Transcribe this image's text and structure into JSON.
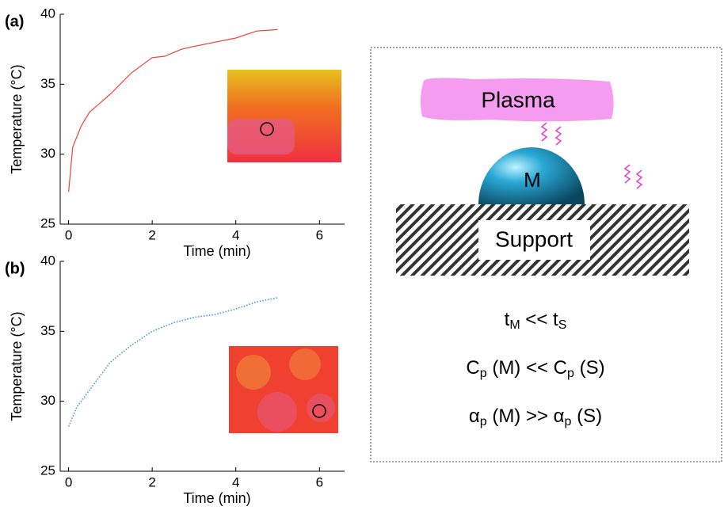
{
  "chart_data": [
    {
      "type": "line",
      "panel_label": "(a)",
      "y_label": "Temperature (°C)",
      "x_label": "Time (min)",
      "xlim": [
        -0.2,
        6.6
      ],
      "xticks": [
        0,
        2,
        4,
        6
      ],
      "ylim": [
        25,
        40
      ],
      "yticks": [
        25,
        30,
        35,
        40
      ],
      "series": [
        {
          "color": "#f0403a",
          "line_style": "solid",
          "x": [
            0,
            0.1,
            0.3,
            0.5,
            1,
            1.5,
            2,
            2.3,
            2.7,
            3,
            3.5,
            4,
            4.5,
            5
          ],
          "values": [
            27.3,
            30.5,
            32,
            33,
            34.3,
            35.8,
            36.9,
            37,
            37.5,
            37.7,
            38,
            38.3,
            38.8,
            38.9
          ]
        }
      ]
    },
    {
      "type": "line",
      "panel_label": "(b)",
      "y_label": "Temperature (°C)",
      "x_label": "Time (min)",
      "xlim": [
        -0.2,
        6.6
      ],
      "xticks": [
        0,
        2,
        4,
        6
      ],
      "ylim": [
        25,
        40
      ],
      "yticks": [
        25,
        30,
        35,
        40
      ],
      "series": [
        {
          "color": "#4a90e2",
          "line_style": "dotted",
          "x": [
            0,
            0.2,
            0.5,
            1,
            1.5,
            2,
            2.5,
            3,
            3.5,
            4,
            4.5,
            5
          ],
          "values": [
            28.2,
            29.6,
            30.8,
            32.8,
            34,
            35,
            35.6,
            36,
            36.2,
            36.6,
            37.1,
            37.4
          ]
        }
      ]
    }
  ],
  "diagram": {
    "plasma": "Plasma",
    "particle": "M",
    "support": "Support",
    "equations": [
      [
        "t",
        "M",
        " << t",
        "S"
      ],
      [
        "C",
        "p",
        " (M) << C",
        "p",
        " (S)"
      ],
      [
        "α",
        "p",
        " (M) >> α",
        "p",
        " (S)"
      ]
    ]
  }
}
